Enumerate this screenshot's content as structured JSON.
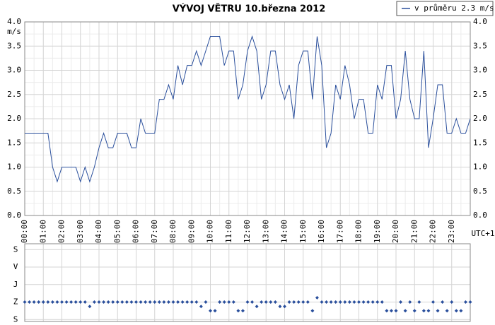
{
  "chart_data": [
    {
      "type": "line",
      "title": "VÝVOJ VĚTRU  10.března 2012",
      "y_unit": "m/s",
      "x_note": "UTC+1",
      "legend": "top-right",
      "grid": true,
      "xlim": [
        0,
        24
      ],
      "ylim": [
        0,
        4
      ],
      "xticks": [
        {
          "value": 0,
          "label": "00:00"
        },
        {
          "value": 1,
          "label": "01:00"
        },
        {
          "value": 2,
          "label": "02:00"
        },
        {
          "value": 3,
          "label": "03:00"
        },
        {
          "value": 4,
          "label": "04:00"
        },
        {
          "value": 5,
          "label": "05:00"
        },
        {
          "value": 6,
          "label": "06:00"
        },
        {
          "value": 7,
          "label": "07:00"
        },
        {
          "value": 8,
          "label": "08:00"
        },
        {
          "value": 9,
          "label": "09:00"
        },
        {
          "value": 10,
          "label": "10:00"
        },
        {
          "value": 11,
          "label": "11:00"
        },
        {
          "value": 12,
          "label": "12:00"
        },
        {
          "value": 13,
          "label": "13:00"
        },
        {
          "value": 14,
          "label": "14:00"
        },
        {
          "value": 15,
          "label": "15:00"
        },
        {
          "value": 16,
          "label": "16:00"
        },
        {
          "value": 17,
          "label": "17:00"
        },
        {
          "value": 18,
          "label": "18:00"
        },
        {
          "value": 19,
          "label": "19:00"
        },
        {
          "value": 20,
          "label": "20:00"
        },
        {
          "value": 21,
          "label": "21:00"
        },
        {
          "value": 22,
          "label": "22:00"
        },
        {
          "value": 23,
          "label": "23:00"
        }
      ],
      "yticks": [
        {
          "value": 0,
          "label": "0.0"
        },
        0.5,
        {
          "value": 1,
          "label": "1.0"
        },
        1.5,
        {
          "value": 2,
          "label": "2.0"
        },
        2.5,
        {
          "value": 3,
          "label": "3.0"
        },
        3.5,
        {
          "value": 4,
          "label": "4.0"
        }
      ],
      "x": [
        0,
        0.25,
        0.5,
        0.75,
        1,
        1.25,
        1.5,
        1.75,
        2,
        2.25,
        2.5,
        2.75,
        3,
        3.25,
        3.5,
        3.75,
        4,
        4.25,
        4.5,
        4.75,
        5,
        5.25,
        5.5,
        5.75,
        6,
        6.25,
        6.5,
        6.75,
        7,
        7.25,
        7.5,
        7.75,
        8,
        8.25,
        8.5,
        8.75,
        9,
        9.25,
        9.5,
        9.75,
        10,
        10.25,
        10.5,
        10.75,
        11,
        11.25,
        11.5,
        11.75,
        12,
        12.25,
        12.5,
        12.75,
        13,
        13.25,
        13.5,
        13.75,
        14,
        14.25,
        14.5,
        14.75,
        15,
        15.25,
        15.5,
        15.75,
        16,
        16.25,
        16.5,
        16.75,
        17,
        17.25,
        17.5,
        17.75,
        18,
        18.25,
        18.5,
        18.75,
        19,
        19.25,
        19.5,
        19.75,
        20,
        20.25,
        20.5,
        20.75,
        21,
        21.25,
        21.5,
        21.75,
        22,
        22.25,
        22.5,
        22.75,
        23,
        23.25,
        23.5,
        23.75,
        24
      ],
      "series": [
        {
          "name": "v průměru 2.3 m/s",
          "color": "#2a4f9c",
          "values": [
            1.7,
            1.7,
            1.7,
            1.7,
            1.7,
            1.7,
            1.0,
            0.7,
            1.0,
            1.0,
            1.0,
            1.0,
            0.7,
            1.0,
            0.7,
            1.0,
            1.4,
            1.7,
            1.4,
            1.4,
            1.7,
            1.7,
            1.7,
            1.4,
            1.4,
            2.0,
            1.7,
            1.7,
            1.7,
            2.4,
            2.4,
            2.7,
            2.4,
            3.1,
            2.7,
            3.1,
            3.1,
            3.4,
            3.1,
            3.4,
            3.7,
            3.7,
            3.7,
            3.1,
            3.4,
            3.4,
            2.4,
            2.7,
            3.4,
            3.7,
            3.4,
            2.4,
            2.7,
            3.4,
            3.4,
            2.7,
            2.4,
            2.7,
            2.0,
            3.1,
            3.4,
            3.4,
            2.4,
            3.7,
            3.1,
            1.4,
            1.7,
            2.7,
            2.4,
            3.1,
            2.7,
            2.0,
            2.4,
            2.4,
            1.7,
            1.7,
            2.7,
            2.4,
            3.1,
            3.1,
            2.0,
            2.4,
            3.4,
            2.4,
            2.0,
            2.0,
            3.4,
            1.4,
            2.0,
            2.7,
            2.7,
            1.7,
            1.7,
            2.0,
            1.7,
            1.7,
            2.0
          ]
        }
      ]
    },
    {
      "type": "scatter",
      "color": "#2a4f9c",
      "xlim": [
        0,
        24
      ],
      "ylim": [
        370,
        -30
      ],
      "grid": true,
      "yticks": [
        {
          "value": 0,
          "label": "S"
        },
        {
          "value": 90,
          "label": "V"
        },
        {
          "value": 180,
          "label": "J"
        },
        {
          "value": 270,
          "label": "Z"
        },
        {
          "value": 360,
          "label": "S"
        }
      ],
      "x": [
        0,
        0.25,
        0.5,
        0.75,
        1,
        1.25,
        1.5,
        1.75,
        2,
        2.25,
        2.5,
        2.75,
        3,
        3.25,
        3.5,
        3.75,
        4,
        4.25,
        4.5,
        4.75,
        5,
        5.25,
        5.5,
        5.75,
        6,
        6.25,
        6.5,
        6.75,
        7,
        7.25,
        7.5,
        7.75,
        8,
        8.25,
        8.5,
        8.75,
        9,
        9.25,
        9.5,
        9.75,
        10,
        10.25,
        10.5,
        10.75,
        11,
        11.25,
        11.5,
        11.75,
        12,
        12.25,
        12.5,
        12.75,
        13,
        13.25,
        13.5,
        13.75,
        14,
        14.25,
        14.5,
        14.75,
        15,
        15.25,
        15.5,
        15.75,
        16,
        16.25,
        16.5,
        16.75,
        17,
        17.25,
        17.5,
        17.75,
        18,
        18.25,
        18.5,
        18.75,
        19,
        19.25,
        19.5,
        19.75,
        20,
        20.25,
        20.5,
        20.75,
        21,
        21.25,
        21.5,
        21.75,
        22,
        22.25,
        22.5,
        22.75,
        23,
        23.25,
        23.5,
        23.75,
        24
      ],
      "values": [
        270,
        270,
        270,
        270,
        270,
        270,
        270,
        270,
        270,
        270,
        270,
        270,
        270,
        270,
        292.5,
        270,
        270,
        270,
        270,
        270,
        270,
        270,
        270,
        270,
        270,
        270,
        270,
        270,
        270,
        270,
        270,
        270,
        270,
        270,
        270,
        270,
        270,
        270,
        292.5,
        270,
        315,
        315,
        270,
        270,
        270,
        270,
        315,
        315,
        270,
        270,
        292.5,
        270,
        270,
        270,
        270,
        292.5,
        292.5,
        270,
        270,
        270,
        270,
        270,
        315,
        247.5,
        270,
        270,
        270,
        270,
        270,
        270,
        270,
        270,
        270,
        270,
        270,
        270,
        270,
        270,
        315,
        315,
        315,
        270,
        315,
        270,
        315,
        270,
        315,
        315,
        270,
        315,
        270,
        315,
        270,
        315,
        315,
        270,
        270
      ]
    }
  ]
}
